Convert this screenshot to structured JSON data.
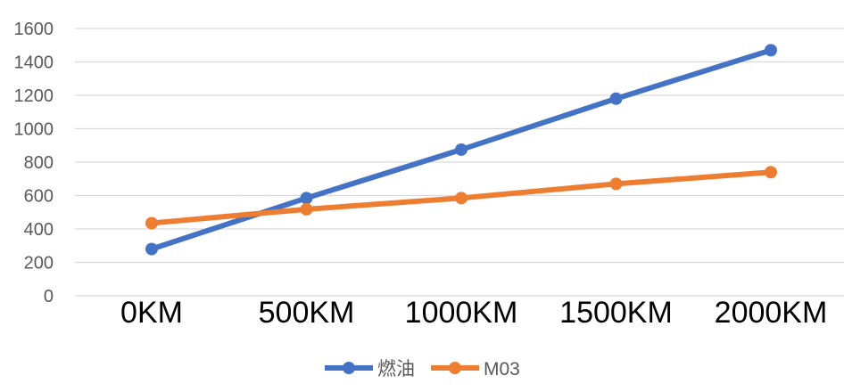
{
  "chart_data": {
    "type": "line",
    "categories": [
      "0KM",
      "500KM",
      "1000KM",
      "1500KM",
      "2000KM"
    ],
    "series": [
      {
        "name": "燃油",
        "values": [
          280,
          585,
          875,
          1180,
          1470
        ],
        "color": "#4472C4"
      },
      {
        "name": "M03",
        "values": [
          435,
          518,
          585,
          670,
          740
        ],
        "color": "#ED7D31"
      }
    ],
    "y_ticks": [
      "0",
      "200",
      "400",
      "600",
      "800",
      "1000",
      "1200",
      "1400",
      "1600"
    ],
    "ylim": [
      0,
      1600
    ],
    "grid": true,
    "legend_position": "bottom"
  }
}
